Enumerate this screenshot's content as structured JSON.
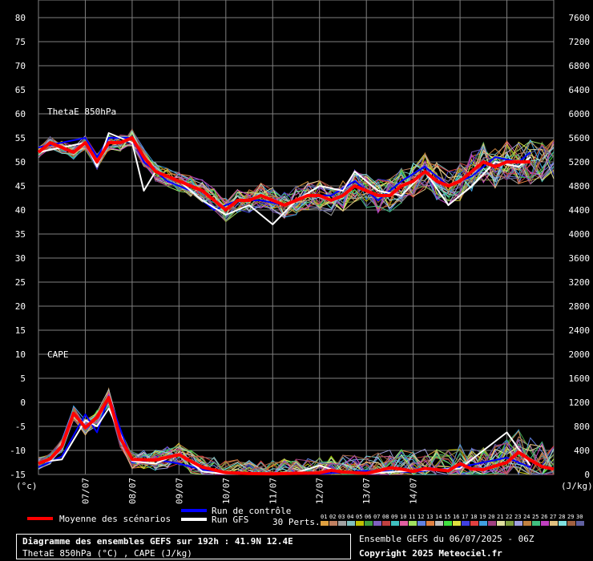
{
  "chart_data": {
    "type": "line",
    "left_axis": {
      "unit": "(°c)",
      "ticks": [
        80,
        75,
        70,
        65,
        60,
        55,
        50,
        45,
        40,
        35,
        30,
        25,
        20,
        15,
        10,
        5,
        0,
        -5,
        -10,
        -15
      ]
    },
    "right_axis": {
      "unit": "(J/kg)",
      "ticks": [
        7600,
        7200,
        6800,
        6400,
        6000,
        5600,
        5200,
        4800,
        4400,
        4000,
        3600,
        3200,
        2800,
        2400,
        2000,
        1600,
        1200,
        800,
        400,
        0
      ]
    },
    "x_labels": [
      "07/07",
      "08/07",
      "09/07",
      "10/07",
      "11/07",
      "12/07",
      "13/07",
      "14/07"
    ],
    "panels": [
      {
        "label": "ThetaE 850hPa",
        "axis": "left",
        "mean": [
          [
            0,
            52
          ],
          [
            6,
            54
          ],
          [
            12,
            53
          ],
          [
            18,
            52
          ],
          [
            24,
            54
          ],
          [
            30,
            50
          ],
          [
            36,
            54
          ],
          [
            42,
            54
          ],
          [
            48,
            55
          ],
          [
            54,
            51
          ],
          [
            60,
            48
          ],
          [
            72,
            46
          ],
          [
            78,
            45
          ],
          [
            84,
            44
          ],
          [
            90,
            42
          ],
          [
            96,
            40
          ],
          [
            102,
            42
          ],
          [
            108,
            42
          ],
          [
            114,
            43
          ],
          [
            120,
            42
          ],
          [
            126,
            41
          ],
          [
            132,
            42
          ],
          [
            138,
            43
          ],
          [
            144,
            43
          ],
          [
            150,
            42
          ],
          [
            156,
            43
          ],
          [
            162,
            45
          ],
          [
            168,
            44
          ],
          [
            174,
            43
          ],
          [
            180,
            43
          ],
          [
            186,
            45
          ],
          [
            192,
            46
          ],
          [
            198,
            48
          ],
          [
            204,
            46
          ],
          [
            210,
            45
          ],
          [
            216,
            46
          ],
          [
            222,
            48
          ],
          [
            228,
            50
          ],
          [
            234,
            49
          ],
          [
            240,
            50
          ],
          [
            246,
            50
          ],
          [
            252,
            50
          ]
        ],
        "control": [
          [
            0,
            53
          ],
          [
            12,
            54
          ],
          [
            24,
            55
          ],
          [
            30,
            51
          ],
          [
            36,
            55
          ],
          [
            48,
            55
          ],
          [
            54,
            50
          ],
          [
            66,
            46
          ],
          [
            78,
            44
          ],
          [
            90,
            40
          ],
          [
            102,
            42
          ],
          [
            114,
            42
          ],
          [
            126,
            41
          ],
          [
            138,
            43
          ],
          [
            150,
            43
          ],
          [
            162,
            46
          ],
          [
            174,
            42
          ],
          [
            186,
            46
          ],
          [
            198,
            49
          ],
          [
            210,
            45
          ],
          [
            222,
            47
          ],
          [
            234,
            51
          ],
          [
            246,
            50
          ],
          [
            252,
            52
          ]
        ],
        "gfs": [
          [
            0,
            52
          ],
          [
            12,
            53
          ],
          [
            24,
            54
          ],
          [
            30,
            49
          ],
          [
            36,
            56
          ],
          [
            48,
            54
          ],
          [
            54,
            44
          ],
          [
            60,
            48
          ],
          [
            72,
            46
          ],
          [
            84,
            42
          ],
          [
            96,
            39
          ],
          [
            108,
            41
          ],
          [
            120,
            37
          ],
          [
            132,
            42
          ],
          [
            144,
            45
          ],
          [
            156,
            44
          ],
          [
            162,
            48
          ],
          [
            174,
            44
          ],
          [
            186,
            43
          ],
          [
            198,
            48
          ],
          [
            210,
            41
          ],
          [
            222,
            45
          ],
          [
            234,
            50
          ],
          [
            246,
            49
          ],
          [
            252,
            51
          ]
        ]
      },
      {
        "label": "CAPE",
        "axis": "right",
        "mean": [
          [
            0,
            180
          ],
          [
            6,
            260
          ],
          [
            12,
            470
          ],
          [
            18,
            1020
          ],
          [
            24,
            780
          ],
          [
            30,
            950
          ],
          [
            36,
            1280
          ],
          [
            42,
            600
          ],
          [
            48,
            250
          ],
          [
            60,
            240
          ],
          [
            72,
            330
          ],
          [
            78,
            220
          ],
          [
            84,
            120
          ],
          [
            96,
            30
          ],
          [
            108,
            15
          ],
          [
            120,
            10
          ],
          [
            132,
            20
          ],
          [
            144,
            25
          ],
          [
            150,
            70
          ],
          [
            156,
            40
          ],
          [
            168,
            20
          ],
          [
            174,
            60
          ],
          [
            180,
            110
          ],
          [
            186,
            90
          ],
          [
            192,
            50
          ],
          [
            198,
            100
          ],
          [
            210,
            60
          ],
          [
            216,
            180
          ],
          [
            222,
            90
          ],
          [
            228,
            80
          ],
          [
            234,
            140
          ],
          [
            240,
            200
          ],
          [
            246,
            370
          ],
          [
            252,
            240
          ],
          [
            258,
            130
          ],
          [
            264,
            90
          ]
        ],
        "control": [
          [
            0,
            120
          ],
          [
            12,
            300
          ],
          [
            24,
            1000
          ],
          [
            30,
            700
          ],
          [
            36,
            1300
          ],
          [
            48,
            200
          ],
          [
            60,
            250
          ],
          [
            72,
            180
          ],
          [
            84,
            80
          ],
          [
            96,
            20
          ],
          [
            120,
            5
          ],
          [
            144,
            10
          ],
          [
            168,
            60
          ],
          [
            192,
            40
          ],
          [
            216,
            120
          ],
          [
            240,
            280
          ],
          [
            252,
            120
          ]
        ],
        "gfs": [
          [
            0,
            200
          ],
          [
            12,
            250
          ],
          [
            24,
            900
          ],
          [
            30,
            800
          ],
          [
            36,
            1100
          ],
          [
            48,
            220
          ],
          [
            60,
            180
          ],
          [
            72,
            350
          ],
          [
            84,
            50
          ],
          [
            96,
            10
          ],
          [
            120,
            5
          ],
          [
            132,
            30
          ],
          [
            144,
            150
          ],
          [
            156,
            30
          ],
          [
            168,
            20
          ],
          [
            192,
            60
          ],
          [
            216,
            100
          ],
          [
            240,
            700
          ],
          [
            252,
            150
          ]
        ]
      }
    ]
  },
  "legend": {
    "mean": "Moyenne des scénarios",
    "control": "Run de contrôle",
    "gfs": "Run GFS",
    "perts": "30 Perts.",
    "pert_numbers": [
      "01",
      "02",
      "03",
      "04",
      "05",
      "06",
      "07",
      "08",
      "09",
      "10",
      "11",
      "12",
      "13",
      "14",
      "15",
      "16",
      "17",
      "18",
      "19",
      "20",
      "21",
      "22",
      "23",
      "24",
      "25",
      "26",
      "27",
      "28",
      "29",
      "30"
    ],
    "pert_colors": [
      "#e0a040",
      "#c08060",
      "#a0a0a0",
      "#80c0c0",
      "#c0c000",
      "#40a040",
      "#8060c0",
      "#c04040",
      "#40c0c0",
      "#e060a0",
      "#a0e060",
      "#6080e0",
      "#e08040",
      "#c0c0c0",
      "#40e040",
      "#e0e040",
      "#4040e0",
      "#e04040",
      "#40a0e0",
      "#a04080",
      "#e0e0a0",
      "#80a040",
      "#a0a0e0",
      "#c08040",
      "#40c080",
      "#c040c0",
      "#e0c080",
      "#80e0e0",
      "#a06040",
      "#6060a0"
    ],
    "colors": {
      "mean": "#ff0000",
      "control": "#0000ff",
      "gfs": "#ffffff",
      "grid": "#808080"
    }
  },
  "footer": {
    "title": "Diagramme des ensembles GEFS sur 192h : 41.9N 12.4E",
    "subtitle": "ThetaE 850hPa (°C) , CAPE (J/kg)",
    "run": "Ensemble GEFS du 06/07/2025 - 06Z",
    "copyright": "Copyright 2025 Meteociel.fr"
  }
}
